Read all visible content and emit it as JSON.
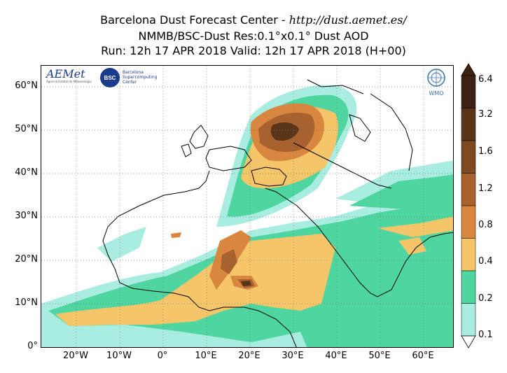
{
  "header": {
    "line1_prefix": "Barcelona Dust Forecast Center - ",
    "line1_url": "http://dust.aemet.es/",
    "line2": "NMMB/BSC-Dust   Res:0.1°x0.1°   Dust AOD",
    "line3": "Run: 12h 17 APR 2018   Valid: 12h 17 APR 2018 (H+00)"
  },
  "map": {
    "lat_ticks": [
      "60°N",
      "50°N",
      "40°N",
      "30°N",
      "20°N",
      "10°N",
      "0°"
    ],
    "lon_ticks": [
      "20°W",
      "10°W",
      "0°",
      "10°E",
      "20°E",
      "30°E",
      "40°E",
      "50°E",
      "60°E"
    ]
  },
  "colorbar": {
    "labels": [
      "6.4",
      "3.2",
      "1.6",
      "1.2",
      "0.8",
      "0.4",
      "0.2",
      "0.1"
    ],
    "colors": [
      "#3d2212",
      "#5a3418",
      "#7d4a22",
      "#a86230",
      "#d9873e",
      "#f5c56a",
      "#4fd6a0",
      "#a9ece0"
    ]
  },
  "logos": {
    "aemet": "AEMet",
    "aemet_sub": "Agencia Estatal de Meteorología",
    "bsc": "BSC",
    "bsc_name": "Barcelona Supercomputing Center",
    "wmo": "WMO"
  }
}
